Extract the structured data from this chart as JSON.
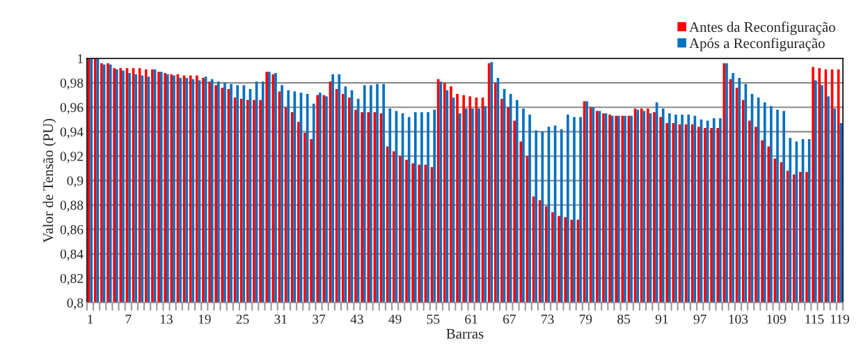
{
  "chart_data": {
    "type": "bar",
    "xlabel": "Barras",
    "ylabel": "Valor de Tensão (PU)",
    "categories": [
      "1",
      null,
      null,
      null,
      null,
      null,
      "7",
      null,
      null,
      null,
      null,
      null,
      "13",
      null,
      null,
      null,
      null,
      null,
      "19",
      null,
      null,
      null,
      null,
      null,
      "25",
      null,
      null,
      null,
      null,
      null,
      "31",
      null,
      null,
      null,
      null,
      null,
      "37",
      null,
      null,
      null,
      null,
      null,
      "43",
      null,
      null,
      null,
      null,
      null,
      "49",
      null,
      null,
      null,
      null,
      null,
      "55",
      null,
      null,
      null,
      null,
      null,
      "61",
      null,
      null,
      null,
      null,
      null,
      "67",
      null,
      null,
      null,
      null,
      null,
      "73",
      null,
      null,
      null,
      null,
      null,
      "79",
      null,
      null,
      null,
      null,
      null,
      "85",
      null,
      null,
      null,
      null,
      null,
      "91",
      null,
      null,
      null,
      null,
      null,
      "97",
      null,
      null,
      null,
      null,
      null,
      "103",
      null,
      null,
      null,
      null,
      null,
      "109",
      null,
      null,
      null,
      null,
      null,
      "115",
      null,
      null,
      null,
      "119"
    ],
    "series": [
      {
        "name": "Antes da Reconfiguração",
        "color": "#ff0000",
        "values": [
          1.0,
          1.0,
          0.996,
          0.996,
          0.992,
          0.992,
          0.992,
          0.992,
          0.992,
          0.991,
          0.991,
          0.989,
          0.988,
          0.987,
          0.987,
          0.986,
          0.986,
          0.986,
          0.984,
          0.981,
          0.978,
          0.976,
          0.975,
          0.968,
          0.967,
          0.966,
          0.966,
          0.966,
          0.989,
          0.987,
          0.973,
          0.96,
          0.956,
          0.948,
          0.939,
          0.934,
          0.97,
          0.97,
          0.981,
          0.975,
          0.971,
          0.968,
          0.958,
          0.956,
          0.956,
          0.956,
          0.955,
          0.928,
          0.924,
          0.92,
          0.917,
          0.914,
          0.913,
          0.913,
          0.911,
          0.983,
          0.98,
          0.977,
          0.971,
          0.97,
          0.969,
          0.968,
          0.968,
          0.996,
          0.98,
          0.967,
          0.96,
          0.949,
          0.932,
          0.92,
          0.887,
          0.884,
          0.879,
          0.874,
          0.871,
          0.87,
          0.868,
          0.868,
          0.965,
          0.96,
          0.957,
          0.955,
          0.954,
          0.953,
          0.953,
          0.953,
          0.959,
          0.959,
          0.959,
          0.956,
          0.952,
          0.947,
          0.947,
          0.946,
          0.946,
          0.946,
          0.944,
          0.943,
          0.943,
          0.943,
          0.996,
          0.983,
          0.976,
          0.966,
          0.949,
          0.944,
          0.933,
          0.928,
          0.918,
          0.915,
          0.908,
          0.905,
          0.907,
          0.907,
          0.993,
          0.992,
          0.991,
          0.991,
          0.991
        ]
      },
      {
        "name": "Após a Reconfiguração",
        "color": "#0070c0",
        "values": [
          1.0,
          1.0,
          0.995,
          0.995,
          0.991,
          0.99,
          0.988,
          0.987,
          0.986,
          0.985,
          0.991,
          0.989,
          0.987,
          0.986,
          0.984,
          0.984,
          0.983,
          0.982,
          0.985,
          0.983,
          0.981,
          0.98,
          0.979,
          0.978,
          0.978,
          0.975,
          0.981,
          0.981,
          0.989,
          0.988,
          0.978,
          0.974,
          0.973,
          0.972,
          0.971,
          0.963,
          0.972,
          0.969,
          0.987,
          0.987,
          0.977,
          0.974,
          0.967,
          0.978,
          0.978,
          0.979,
          0.979,
          0.959,
          0.957,
          0.955,
          0.952,
          0.956,
          0.956,
          0.956,
          0.958,
          0.981,
          0.974,
          0.968,
          0.955,
          0.959,
          0.959,
          0.959,
          0.961,
          0.997,
          0.984,
          0.975,
          0.971,
          0.966,
          0.959,
          0.954,
          0.941,
          0.94,
          0.944,
          0.945,
          0.942,
          0.954,
          0.952,
          0.952,
          0.965,
          0.96,
          0.957,
          0.955,
          0.953,
          0.953,
          0.953,
          0.953,
          0.958,
          0.957,
          0.955,
          0.964,
          0.959,
          0.955,
          0.954,
          0.954,
          0.954,
          0.953,
          0.95,
          0.949,
          0.951,
          0.951,
          0.996,
          0.988,
          0.984,
          0.979,
          0.971,
          0.968,
          0.964,
          0.961,
          0.958,
          0.957,
          0.935,
          0.932,
          0.934,
          0.934,
          0.982,
          0.978,
          0.969,
          0.959,
          0.947
        ]
      }
    ],
    "ylim": [
      0.8,
      1
    ],
    "yticks": [
      {
        "value": 0.8,
        "label": "0,8"
      },
      {
        "value": 0.82,
        "label": "0,82"
      },
      {
        "value": 0.84,
        "label": "0,84"
      },
      {
        "value": 0.86,
        "label": "0,86"
      },
      {
        "value": 0.88,
        "label": "0,88"
      },
      {
        "value": 0.9,
        "label": "0,9"
      },
      {
        "value": 0.92,
        "label": "0,92"
      },
      {
        "value": 0.94,
        "label": "0,94"
      },
      {
        "value": 0.96,
        "label": "0,96"
      },
      {
        "value": 0.98,
        "label": "0,98"
      },
      {
        "value": 1,
        "label": "1"
      }
    ],
    "grid": "y",
    "legend": "top right"
  }
}
